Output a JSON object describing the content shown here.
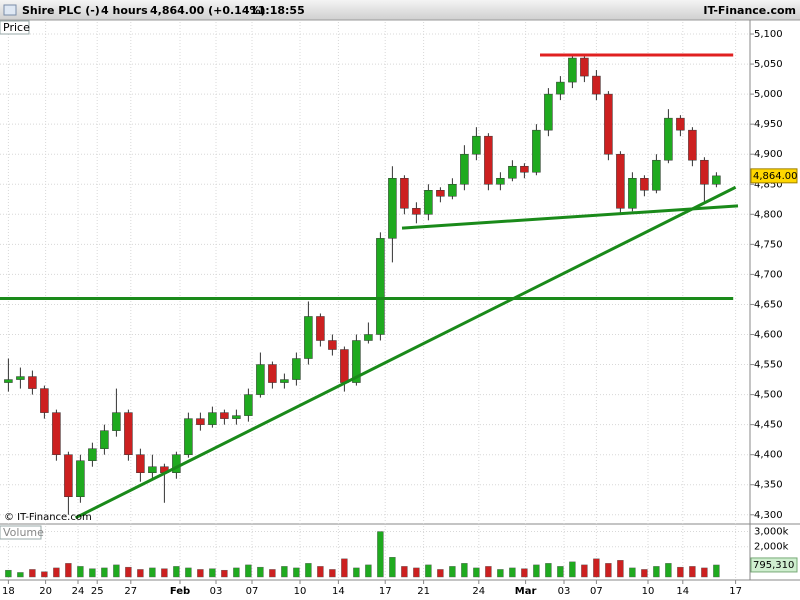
{
  "chart_data": {
    "type": "candlestick",
    "header": {
      "symbol": "Shire PLC (-)",
      "interval": "4 hours",
      "quote": "4,864.00 (+0.14%)",
      "time": "11:18:55",
      "brand": "IT-Finance.com"
    },
    "price_label": "Price",
    "volume_label": "Volume",
    "watermark": "© IT-Finance.com",
    "up_color": "#1faa1f",
    "down_color": "#cc2020",
    "xlim": [
      -0.7,
      61.8
    ],
    "xticks": [
      {
        "value": 0,
        "label": "18"
      },
      {
        "value": 3.1,
        "label": "20"
      },
      {
        "value": 5.8,
        "label": "24"
      },
      {
        "value": 7.4,
        "label": "25"
      },
      {
        "value": 10.2,
        "label": "27"
      },
      {
        "value": 14.3,
        "label": "Feb"
      },
      {
        "value": 17.3,
        "label": "03"
      },
      {
        "value": 20.3,
        "label": "07"
      },
      {
        "value": 24.3,
        "label": "10"
      },
      {
        "value": 27.5,
        "label": "14"
      },
      {
        "value": 31.4,
        "label": "17"
      },
      {
        "value": 34.6,
        "label": "21"
      },
      {
        "value": 39.2,
        "label": "24"
      },
      {
        "value": 43.1,
        "label": "Mar"
      },
      {
        "value": 46.3,
        "label": "03"
      },
      {
        "value": 49,
        "label": "07"
      },
      {
        "value": 53.3,
        "label": "10"
      },
      {
        "value": 56.2,
        "label": "14"
      },
      {
        "value": 60.6,
        "label": "17"
      }
    ],
    "ylim": [
      4288,
      5120
    ],
    "yticks": [
      {
        "value": 4300,
        "label": "4,300"
      },
      {
        "value": 4350,
        "label": "4,350"
      },
      {
        "value": 4400,
        "label": "4,400"
      },
      {
        "value": 4450,
        "label": "4,450"
      },
      {
        "value": 4500,
        "label": "4,500"
      },
      {
        "value": 4550,
        "label": "4,550"
      },
      {
        "value": 4600,
        "label": "4,600"
      },
      {
        "value": 4650,
        "label": "4,650"
      },
      {
        "value": 4700,
        "label": "4,700"
      },
      {
        "value": 4750,
        "label": "4,750"
      },
      {
        "value": 4800,
        "label": "4,800"
      },
      {
        "value": 4850,
        "label": "4,850"
      },
      {
        "value": 4900,
        "label": "4,900"
      },
      {
        "value": 4950,
        "label": "4,950"
      },
      {
        "value": 5000,
        "label": "5,000"
      },
      {
        "value": 5050,
        "label": "5,050"
      },
      {
        "value": 5100,
        "label": "5,100"
      }
    ],
    "open": [
      4520,
      4525,
      4530,
      4510,
      4470,
      4400,
      4330,
      4390,
      4410,
      4440,
      4470,
      4400,
      4370,
      4380,
      4370,
      4400,
      4460,
      4450,
      4470,
      4460,
      4465,
      4500,
      4550,
      4520,
      4525,
      4560,
      4630,
      4590,
      4575,
      4520,
      4590,
      4600,
      4760,
      4860,
      4810,
      4800,
      4840,
      4830,
      4850,
      4900,
      4930,
      4850,
      4860,
      4880,
      4870,
      4940,
      5000,
      5020,
      5060,
      5030,
      5000,
      4900,
      4810,
      4860,
      4840,
      4890,
      4960,
      4940,
      4890,
      4850
    ],
    "high": [
      4560,
      4545,
      4540,
      4515,
      4475,
      4405,
      4400,
      4420,
      4450,
      4510,
      4475,
      4410,
      4400,
      4385,
      4405,
      4470,
      4470,
      4480,
      4475,
      4475,
      4510,
      4570,
      4555,
      4535,
      4570,
      4655,
      4635,
      4600,
      4580,
      4600,
      4620,
      4770,
      4880,
      4865,
      4820,
      4850,
      4845,
      4860,
      4915,
      4945,
      4935,
      4870,
      4890,
      4885,
      4950,
      5010,
      5030,
      5065,
      5065,
      5040,
      5005,
      4905,
      4870,
      4865,
      4900,
      4975,
      4965,
      4945,
      4895,
      4870
    ],
    "low": [
      4505,
      4510,
      4500,
      4460,
      4390,
      4300,
      4320,
      4380,
      4400,
      4430,
      4390,
      4355,
      4360,
      4320,
      4360,
      4395,
      4440,
      4445,
      4450,
      4450,
      4455,
      4495,
      4510,
      4510,
      4515,
      4550,
      4580,
      4565,
      4505,
      4515,
      4585,
      4590,
      4720,
      4800,
      4785,
      4790,
      4820,
      4825,
      4840,
      4890,
      4840,
      4840,
      4855,
      4860,
      4865,
      4930,
      4990,
      5010,
      5020,
      4990,
      4890,
      4800,
      4805,
      4830,
      4835,
      4885,
      4930,
      4880,
      4820,
      4845
    ],
    "close": [
      4525,
      4530,
      4510,
      4470,
      4400,
      4330,
      4390,
      4410,
      4440,
      4470,
      4400,
      4370,
      4380,
      4370,
      4400,
      4460,
      4450,
      4470,
      4460,
      4465,
      4500,
      4550,
      4520,
      4525,
      4560,
      4630,
      4590,
      4575,
      4520,
      4590,
      4600,
      4760,
      4860,
      4810,
      4800,
      4840,
      4830,
      4850,
      4900,
      4930,
      4850,
      4860,
      4880,
      4870,
      4940,
      5000,
      5020,
      5060,
      5030,
      5000,
      4900,
      4810,
      4860,
      4840,
      4890,
      4960,
      4940,
      4890,
      4850,
      4864
    ],
    "last_value": 4864,
    "last_value_label": "4,864.00",
    "volume": [
      450,
      300,
      500,
      350,
      600,
      900,
      700,
      550,
      600,
      800,
      650,
      500,
      600,
      550,
      700,
      600,
      500,
      550,
      450,
      600,
      800,
      650,
      500,
      700,
      600,
      900,
      700,
      500,
      1200,
      600,
      800,
      3000,
      1300,
      700,
      600,
      800,
      500,
      700,
      900,
      600,
      700,
      500,
      600,
      550,
      800,
      900,
      700,
      1000,
      800,
      1200,
      900,
      1100,
      600,
      500,
      700,
      900,
      650,
      700,
      600,
      795.31
    ],
    "volume_ylim": [
      0,
      3300
    ],
    "volume_yticks": [
      {
        "value": 2000,
        "label": "2,000k"
      },
      {
        "value": 3000,
        "label": "3,000k"
      }
    ],
    "last_volume_label": "795,310",
    "trendlines": [
      {
        "color": "#e02020",
        "x": [
          44.3,
          60.4
        ],
        "y": [
          5065,
          5065
        ]
      },
      {
        "color": "#1a8a1a",
        "x": [
          -0.7,
          60.4
        ],
        "y": [
          4660,
          4660
        ]
      },
      {
        "color": "#1a8a1a",
        "x": [
          32.8,
          60.8
        ],
        "y": [
          4777,
          4814
        ]
      },
      {
        "color": "#1a8a1a",
        "x": [
          5.6,
          60.6
        ],
        "y": [
          4295,
          4845
        ]
      }
    ]
  }
}
